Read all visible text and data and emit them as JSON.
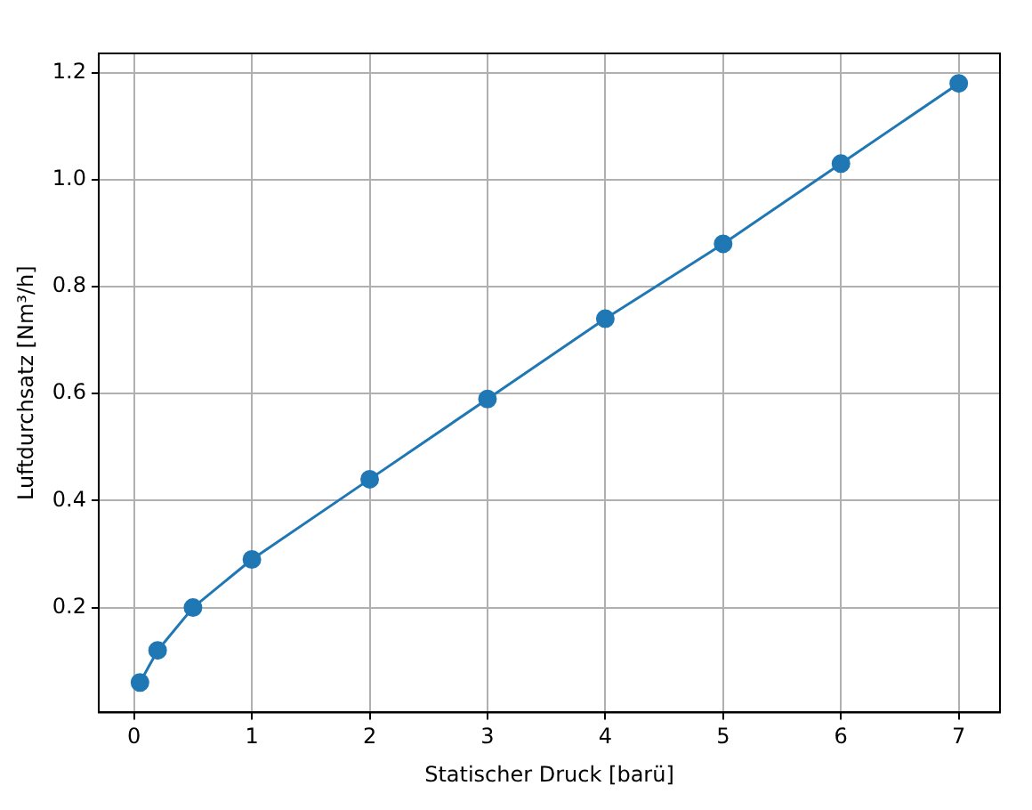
{
  "chart_data": {
    "type": "line",
    "xlabel": "Statischer Druck [barü]",
    "ylabel": "Luftdurchsatz [Nm³/h]",
    "x": [
      0.05,
      0.2,
      0.5,
      1,
      2,
      3,
      4,
      5,
      6,
      7
    ],
    "series": [
      {
        "color": "#1f77b4",
        "values": [
          0.06,
          0.12,
          0.2,
          0.29,
          0.44,
          0.59,
          0.74,
          0.88,
          1.03,
          1.18
        ]
      }
    ],
    "xlim": [
      -0.3,
      7.35
    ],
    "xticks": [
      0,
      1,
      2,
      3,
      4,
      5,
      6,
      7
    ],
    "ylim": [
      0.004,
      1.236
    ],
    "yticks": [
      0.2,
      0.4,
      0.6,
      0.8,
      {
        "value": 1,
        "label": "1.0"
      },
      1.2
    ],
    "grid": true,
    "marker": "circle",
    "line_style": "solid"
  }
}
